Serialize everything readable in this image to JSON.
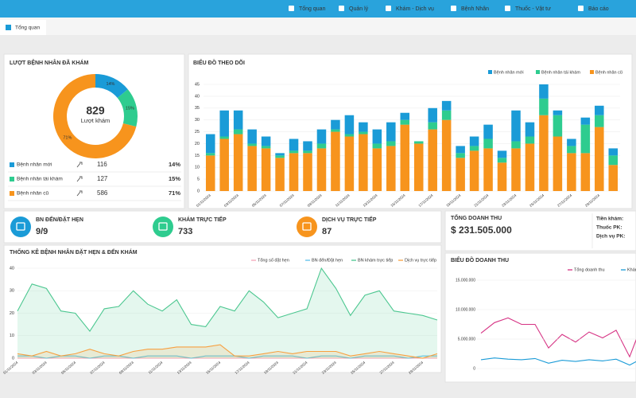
{
  "nav": {
    "items": [
      "Tổng quan",
      "Quản lý",
      "Khám - Dịch vụ",
      "Bệnh Nhân",
      "Thuốc - Vật tư",
      "Báo cáo"
    ]
  },
  "tab": "Tổng quan",
  "chart_data": [
    {
      "type": "pie",
      "title": "LƯỢT BỆNH NHÂN ĐÃ KHÁM",
      "center_value": 829,
      "center_label": "Lượt khám",
      "categories": [
        "Bệnh nhân mới",
        "Bệnh nhân tái khám",
        "Bệnh nhân cũ"
      ],
      "values": [
        14,
        15,
        71
      ],
      "value_labels": [
        "14%",
        "15%",
        "71%"
      ],
      "colors": [
        "#1a9bd7",
        "#2ecc8f",
        "#f7941d"
      ],
      "counts": [
        116,
        127,
        586
      ]
    },
    {
      "type": "bar",
      "stacked": true,
      "title": "BIỂU ĐỒ THEO DÕI",
      "categories": [
        "01/11/2024",
        null,
        "03/11/2024",
        null,
        "05/11/2024",
        null,
        "07/11/2024",
        null,
        "09/11/2024",
        null,
        "11/11/2024",
        null,
        "13/11/2024",
        null,
        "15/11/2024",
        null,
        "17/11/2024",
        null,
        "19/11/2024",
        null,
        "21/11/2024",
        null,
        "23/11/2024",
        null,
        "25/11/2024",
        null,
        "27/11/2024",
        null,
        "29/11/2024",
        null
      ],
      "series": [
        {
          "name": "Bệnh nhân mới",
          "color": "#1a9bd7",
          "values": [
            8,
            11,
            8,
            6,
            4,
            1,
            5,
            4,
            6,
            4,
            8,
            4,
            6,
            8,
            3,
            0,
            6,
            4,
            3,
            4,
            6,
            3,
            13,
            6,
            6,
            2,
            3,
            3,
            4,
            3
          ]
        },
        {
          "name": "Bệnh nhân tái khám",
          "color": "#2ecc8f",
          "values": [
            1,
            1,
            2,
            1,
            1,
            1,
            1,
            1,
            2,
            1,
            1,
            1,
            2,
            2,
            2,
            1,
            3,
            4,
            2,
            2,
            4,
            2,
            3,
            3,
            7,
            9,
            3,
            12,
            5,
            4
          ]
        },
        {
          "name": "Bệnh nhân cũ",
          "color": "#f7941d",
          "values": [
            15,
            22,
            24,
            19,
            18,
            14,
            16,
            16,
            18,
            25,
            23,
            24,
            18,
            19,
            28,
            20,
            26,
            30,
            14,
            17,
            18,
            12,
            18,
            20,
            32,
            23,
            16,
            16,
            27,
            11
          ]
        }
      ],
      "ylim": [
        0,
        45
      ],
      "yticks": [
        0,
        5,
        10,
        15,
        20,
        25,
        30,
        35,
        40,
        45
      ],
      "grid": true,
      "legend": "top-right"
    },
    {
      "type": "line",
      "title": "THỐNG KÊ BỆNH NHÂN ĐẶT HẸN & ĐẾN KHÁM",
      "categories": [
        "01/11/2024",
        null,
        "03/11/2024",
        null,
        "05/11/2024",
        null,
        "07/11/2024",
        null,
        "09/11/2024",
        null,
        "11/11/2024",
        null,
        "13/11/2024",
        null,
        "15/11/2024",
        null,
        "17/11/2024",
        null,
        "19/11/2024",
        null,
        "21/11/2024",
        null,
        "23/11/2024",
        null,
        "25/11/2024",
        null,
        "27/11/2024",
        null,
        "29/11/2024",
        null
      ],
      "series": [
        {
          "name": "Tổng số đặt hẹn",
          "color": "#f4a6b8",
          "values": [
            0,
            0,
            0,
            0,
            0,
            0,
            0,
            0,
            0,
            0,
            0,
            0,
            0,
            0,
            0,
            0,
            0,
            0,
            0,
            0,
            0,
            0,
            0,
            0,
            0,
            0,
            0,
            0,
            0,
            0
          ]
        },
        {
          "name": "BN đến/Đặt hẹn",
          "color": "#5bc0ea",
          "values": [
            1,
            1,
            0,
            1,
            1,
            0,
            1,
            1,
            0,
            1,
            1,
            1,
            0,
            1,
            1,
            1,
            0,
            1,
            1,
            1,
            0,
            1,
            1,
            0,
            1,
            1,
            1,
            0,
            1,
            1
          ]
        },
        {
          "name": "BN khám trực tiếp",
          "color": "#4cc790",
          "area": true,
          "values": [
            21,
            33,
            31,
            21,
            20,
            12,
            22,
            23,
            30,
            24,
            21,
            26,
            15,
            14,
            23,
            21,
            30,
            25,
            18,
            20,
            22,
            40,
            31,
            19,
            28,
            30,
            21,
            20,
            19,
            17
          ]
        },
        {
          "name": "Dịch vụ trực tiếp",
          "color": "#f7a040",
          "area": true,
          "values": [
            2,
            1,
            3,
            1,
            2,
            4,
            2,
            1,
            3,
            4,
            4,
            5,
            5,
            5,
            6,
            1,
            1,
            2,
            3,
            2,
            3,
            3,
            3,
            1,
            2,
            3,
            2,
            1,
            0,
            2
          ]
        }
      ],
      "ylim": [
        0,
        40
      ],
      "yticks": [
        0,
        10,
        20,
        30,
        40
      ],
      "grid": true,
      "legend": "top-right"
    },
    {
      "type": "line",
      "title": "BIỂU ĐỒ DOANH THU",
      "series": [
        {
          "name": "Tổng doanh thu",
          "color": "#d63384",
          "values": [
            6000000,
            7800000,
            8600000,
            7500000,
            7500000,
            3500000,
            5800000,
            4500000,
            6200000,
            5200000,
            6500000,
            2000000,
            8000000
          ]
        },
        {
          "name": "Khám",
          "color": "#1a9bd7",
          "values": [
            1500000,
            1800000,
            1600000,
            1500000,
            1700000,
            900000,
            1400000,
            1200000,
            1500000,
            1300000,
            1600000,
            600000,
            1800000
          ]
        }
      ],
      "ylim": [
        0,
        15000000
      ],
      "yticks": [
        0,
        {
          "value": 5000000,
          "label": "5.000.000"
        },
        {
          "value": 10000000,
          "label": "10.000.000"
        },
        {
          "value": 15000000,
          "label": "15.000.000"
        }
      ],
      "grid": true,
      "legend": "top-right"
    }
  ],
  "kpis": [
    {
      "label": "BN ĐẾN/ĐẶT HẸN",
      "value": "9/9",
      "color": "#1a9bd7"
    },
    {
      "label": "KHÁM TRỰC TIẾP",
      "value": 733,
      "color": "#2ecc8f"
    },
    {
      "label": "DỊCH VỤ TRỰC TIẾP",
      "value": 87,
      "color": "#f7941d"
    }
  ],
  "revenue": {
    "title": "TỔNG DOANH THU",
    "total": "$ 231.505.000",
    "items": [
      "Tiền khám:",
      "Thuốc PK:",
      "Dịch vụ PK:"
    ]
  }
}
